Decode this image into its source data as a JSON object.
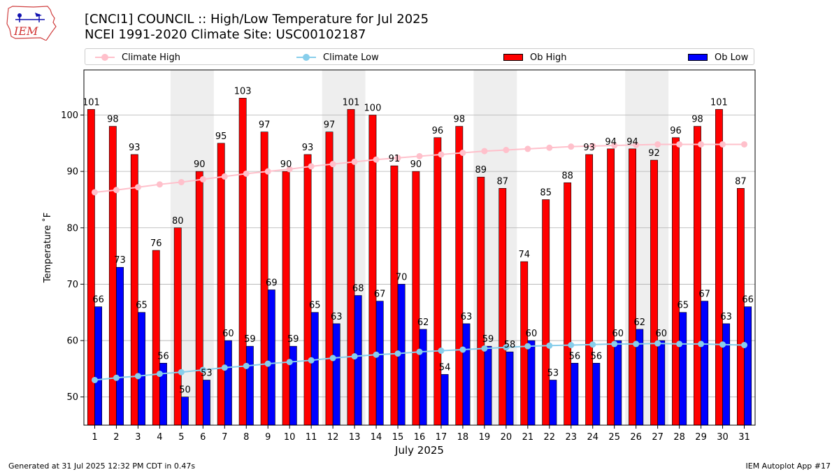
{
  "header": {
    "logo_text": "IEM",
    "title_line1": "[CNCI1] COUNCIL :: High/Low Temperature for Jul 2025",
    "title_line2": "NCEI 1991-2020 Climate Site: USC00102187"
  },
  "footer": {
    "left": "Generated at 31 Jul 2025 12:32 PM CDT in 0.47s",
    "right": "IEM Autoplot App #17"
  },
  "colors": {
    "ob_high": "#ff0000",
    "ob_low": "#0000ff",
    "climate_high": "#ffc0cb",
    "climate_low": "#87ceeb",
    "weekend_shade": "#eeeeee",
    "grid": "#b0b0b0"
  },
  "chart_data": {
    "type": "bar",
    "xlabel": "July 2025",
    "ylabel": "Temperature ˚F",
    "ylim": [
      45,
      108
    ],
    "yticks": [
      50,
      60,
      70,
      80,
      90,
      100
    ],
    "grid": "horizontal",
    "legend_position": "top",
    "categories": [
      "1",
      "2",
      "3",
      "4",
      "5",
      "6",
      "7",
      "8",
      "9",
      "10",
      "11",
      "12",
      "13",
      "14",
      "15",
      "16",
      "17",
      "18",
      "19",
      "20",
      "21",
      "22",
      "23",
      "24",
      "25",
      "26",
      "27",
      "28",
      "29",
      "30",
      "31"
    ],
    "shaded_days": [
      [
        5,
        6
      ],
      [
        12,
        13
      ],
      [
        19,
        20
      ],
      [
        26,
        27
      ]
    ],
    "series": [
      {
        "name": "Climate High",
        "kind": "line",
        "values": [
          86.3,
          86.7,
          87.2,
          87.7,
          88.1,
          88.6,
          89.1,
          89.6,
          90.0,
          90.4,
          90.9,
          91.3,
          91.7,
          92.1,
          92.4,
          92.7,
          93.0,
          93.3,
          93.6,
          93.8,
          94.0,
          94.2,
          94.4,
          94.5,
          94.6,
          94.7,
          94.8,
          94.8,
          94.8,
          94.8,
          94.8
        ]
      },
      {
        "name": "Climate Low",
        "kind": "line",
        "values": [
          53.0,
          53.4,
          53.7,
          54.1,
          54.4,
          54.8,
          55.2,
          55.5,
          55.9,
          56.2,
          56.5,
          56.9,
          57.2,
          57.5,
          57.7,
          58.0,
          58.2,
          58.4,
          58.6,
          58.8,
          59.0,
          59.1,
          59.2,
          59.3,
          59.4,
          59.4,
          59.5,
          59.4,
          59.4,
          59.3,
          59.2
        ]
      },
      {
        "name": "Ob High",
        "kind": "bar",
        "values": [
          101,
          98,
          93,
          76,
          80,
          90,
          95,
          103,
          97,
          90,
          93,
          97,
          101,
          100,
          91,
          90,
          96,
          98,
          89,
          87,
          74,
          85,
          88,
          93,
          94,
          94,
          92,
          96,
          98,
          101,
          87
        ]
      },
      {
        "name": "Ob Low",
        "kind": "bar",
        "values": [
          66,
          73,
          65,
          56,
          50,
          53,
          60,
          59,
          69,
          59,
          65,
          63,
          68,
          67,
          70,
          62,
          54,
          63,
          59,
          58,
          60,
          53,
          56,
          56,
          60,
          62,
          60,
          65,
          67,
          63,
          66
        ]
      }
    ]
  }
}
